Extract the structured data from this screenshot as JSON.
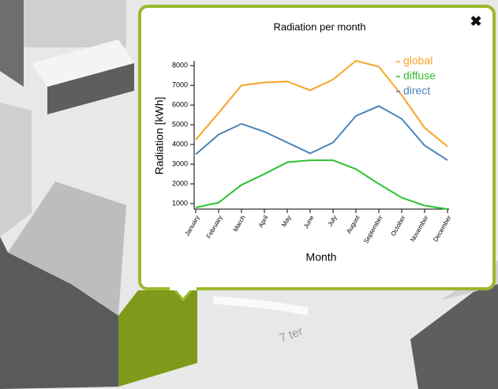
{
  "map_label": "7 ter",
  "chart_data": {
    "type": "line",
    "title": "Radiation per month",
    "x_label": "Month",
    "y_label": "Radiation [kWh]",
    "categories": [
      "January",
      "February",
      "March",
      "April",
      "May",
      "June",
      "July",
      "August",
      "September",
      "October",
      "November",
      "December"
    ],
    "series": [
      {
        "name": "global",
        "color": "#f7a429",
        "values": [
          4240,
          5600,
          7000,
          7150,
          7200,
          6750,
          7300,
          8250,
          7950,
          6500,
          4850,
          3900
        ]
      },
      {
        "name": "diffuse",
        "color": "#2fc12f",
        "values": [
          800,
          1050,
          1950,
          2500,
          3100,
          3200,
          3200,
          2750,
          2000,
          1300,
          900,
          720
        ]
      },
      {
        "name": "direct",
        "color": "#4a84b8",
        "values": [
          3500,
          4500,
          5050,
          4650,
          4100,
          3550,
          4100,
          5450,
          5950,
          5300,
          3950,
          3200
        ]
      }
    ],
    "ylim": [
      720,
      8250
    ],
    "yticks": [
      1000,
      2000,
      3000,
      4000,
      5000,
      6000,
      7000,
      8000
    ]
  }
}
